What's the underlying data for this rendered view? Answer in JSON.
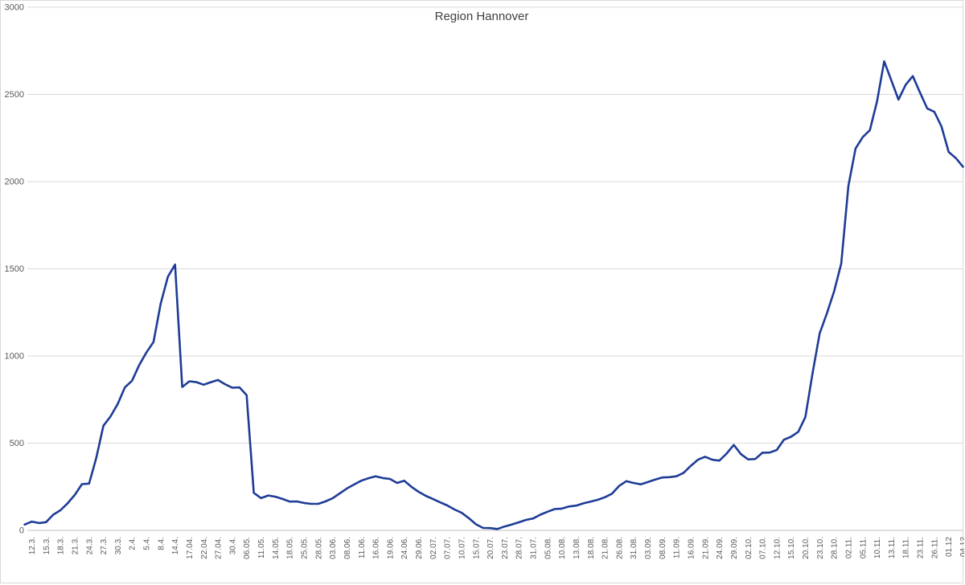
{
  "chart": {
    "title": "Region Hannover",
    "type": "line",
    "colors": {
      "line": "#1e3c96",
      "gridline": "#d9d9d9",
      "zero_axis": "#bfbfbf",
      "tick_label": "#595959",
      "title": "#404040",
      "background": "#ffffff"
    },
    "chart_data": {
      "type": "line",
      "title": "Region Hannover",
      "xlabel": "",
      "ylabel": "",
      "ylim": [
        0,
        3000
      ],
      "ytick_interval": 500,
      "grid": "horizontal",
      "legend": "none",
      "note_points_per_label": 2,
      "y_tick_labels": [
        "0",
        "500",
        "1000",
        "1500",
        "2000",
        "2500",
        "3000"
      ],
      "x_labels": [
        "12.3.",
        "15.3.",
        "18.3.",
        "21.3.",
        "24.3.",
        "27.3.",
        "30.3.",
        "2.4.",
        "5.4.",
        "8.4.",
        "14.4.",
        "17.04.",
        "22.04.",
        "27.04.",
        "30.4.",
        "06.05.",
        "11.05.",
        "14.05.",
        "18.05.",
        "25.05.",
        "28.05.",
        "03.06.",
        "08.06.",
        "11.06.",
        "16.06.",
        "19.06.",
        "24.06.",
        "29.06.",
        "02.07.",
        "07.07.",
        "10.07.",
        "15.07.",
        "20.07.",
        "23.07.",
        "28.07.",
        "31.07.",
        "05.08.",
        "10.08.",
        "13.08.",
        "18.08.",
        "21.08.",
        "26.08.",
        "31.08.",
        "03.09.",
        "08.09.",
        "11.09.",
        "16.09.",
        "21.09.",
        "24.09.",
        "29.09.",
        "02.10.",
        "07.10.",
        "12.10.",
        "15.10.",
        "20.10.",
        "23.10.",
        "28.10.",
        "02.11.",
        "05.11.",
        "10.11.",
        "13.11.",
        "18.11.",
        "23.11.",
        "26.11.",
        "01.12",
        "04.12"
      ],
      "values": [
        33,
        50,
        42,
        47,
        90,
        115,
        155,
        203,
        265,
        268,
        415,
        600,
        654,
        725,
        820,
        858,
        948,
        1020,
        1080,
        1300,
        1455,
        1524,
        822,
        855,
        850,
        835,
        850,
        862,
        838,
        818,
        820,
        775,
        215,
        185,
        200,
        193,
        180,
        165,
        166,
        157,
        152,
        152,
        166,
        184,
        212,
        240,
        263,
        285,
        299,
        310,
        300,
        295,
        272,
        285,
        250,
        221,
        198,
        180,
        161,
        143,
        120,
        101,
        70,
        35,
        14,
        13,
        8,
        22,
        33,
        46,
        60,
        68,
        90,
        107,
        122,
        125,
        137,
        142,
        155,
        165,
        175,
        190,
        210,
        255,
        282,
        272,
        264,
        277,
        291,
        303,
        305,
        310,
        330,
        370,
        405,
        422,
        405,
        400,
        440,
        490,
        437,
        407,
        409,
        445,
        446,
        461,
        520,
        537,
        565,
        650,
        900,
        1130,
        1245,
        1370,
        1530,
        1975,
        2190,
        2255,
        2295,
        2460,
        2690,
        2580,
        2470,
        2555,
        2605,
        2510,
        2420,
        2400,
        2315,
        2170,
        2135,
        2085
      ]
    }
  }
}
